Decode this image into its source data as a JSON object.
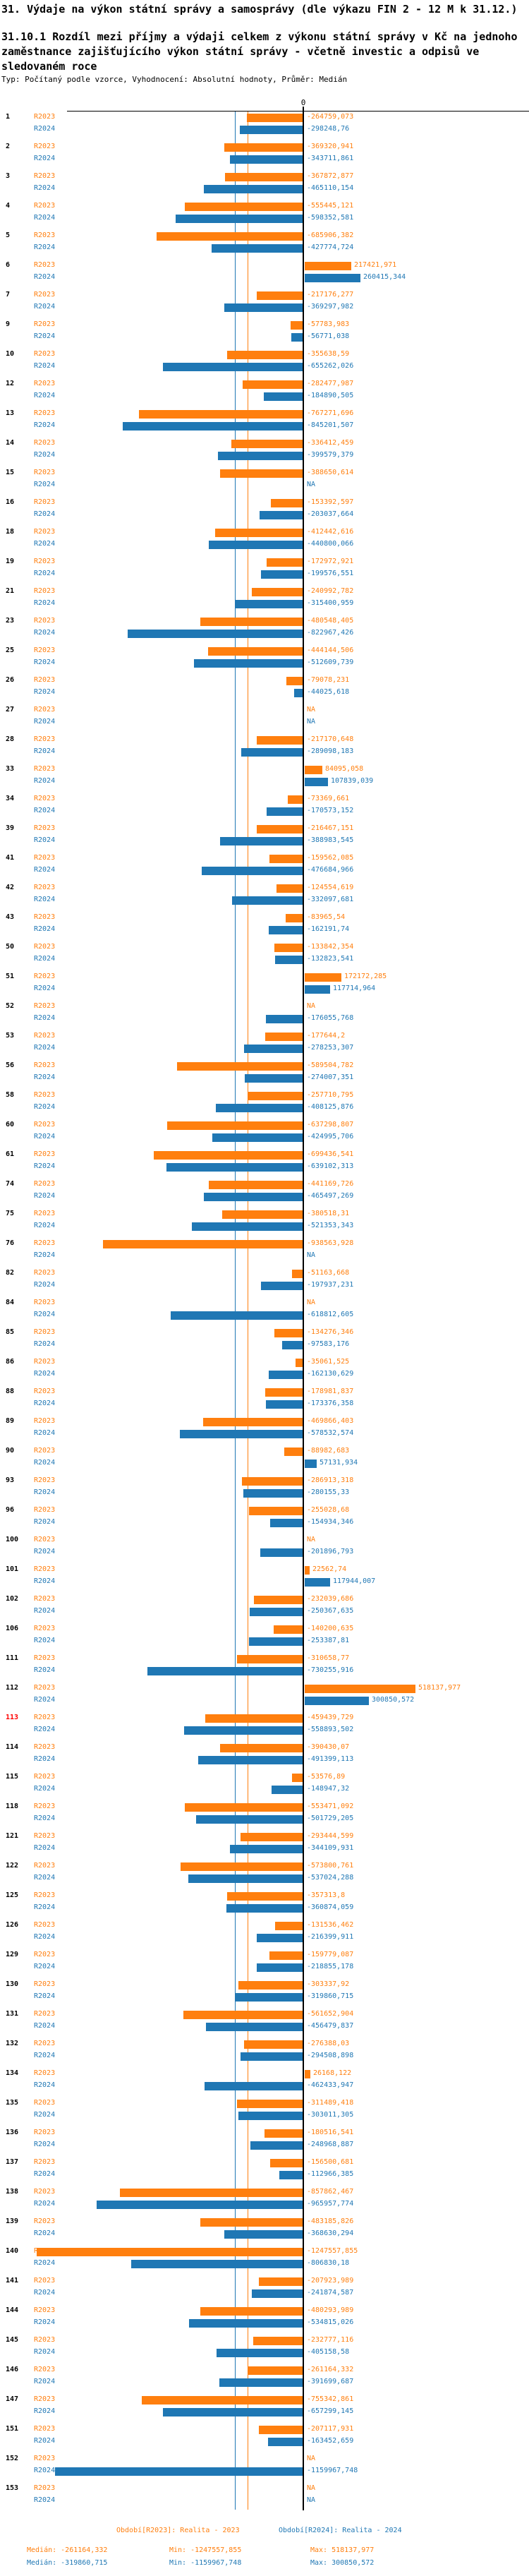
{
  "header": {
    "title": "31. Výdaje na výkon státní správy a samosprávy (dle výkazu FIN 2 - 12 M k 31.12.)",
    "subtitle": "31.10.1 Rozdíl mezi příjmy a výdaji celkem z výkonu státní správy v Kč na jednoho zaměstnance zajišťujícího výkon státní správy - včetně investic a odpisů ve sledovaném roce",
    "meta": "Typ: Počítaný podle vzorce, Vyhodnocení: Absolutní hodnoty, Průměr: Medián"
  },
  "chart_data": {
    "type": "bar",
    "orientation": "horizontal",
    "zero_tick_label": "0",
    "na_label": "NA",
    "highlighted_category": "113",
    "colors": {
      "r2023": "#ff7f0e",
      "r2024": "#1f77b4",
      "highlight": "#ff0000",
      "axis": "#000000"
    },
    "categories": [
      "1",
      "2",
      "3",
      "4",
      "5",
      "6",
      "7",
      "9",
      "10",
      "12",
      "13",
      "14",
      "15",
      "16",
      "18",
      "19",
      "21",
      "23",
      "25",
      "26",
      "27",
      "28",
      "33",
      "34",
      "39",
      "41",
      "42",
      "43",
      "50",
      "51",
      "52",
      "53",
      "56",
      "58",
      "60",
      "61",
      "74",
      "75",
      "76",
      "82",
      "84",
      "85",
      "86",
      "88",
      "89",
      "90",
      "93",
      "96",
      "100",
      "101",
      "102",
      "106",
      "111",
      "112",
      "113",
      "114",
      "115",
      "118",
      "121",
      "122",
      "125",
      "126",
      "129",
      "130",
      "131",
      "132",
      "134",
      "135",
      "136",
      "137",
      "138",
      "139",
      "140",
      "141",
      "144",
      "145",
      "146",
      "147",
      "151",
      "152",
      "153"
    ],
    "series": [
      {
        "name": "R2023",
        "color": "#ff7f0e",
        "values": [
          "-264759,073",
          "-369320,941",
          "-367872,877",
          "-555445,121",
          "-685906,382",
          "217421,971",
          "-217176,277",
          "-57783,983",
          "-355638,59",
          "-282477,987",
          "-767271,696",
          "-336412,459",
          "-388650,614",
          "-153392,597",
          "-412442,616",
          "-172972,921",
          "-240992,782",
          "-480548,405",
          "-444144,506",
          "-79078,231",
          "NA",
          "-217170,648",
          "84095,058",
          "-73369,661",
          "-216467,151",
          "-159562,085",
          "-124554,619",
          "-83965,54",
          "-133842,354",
          "172172,285",
          "NA",
          "-177644,2",
          "-589504,782",
          "-257710,795",
          "-637298,807",
          "-699436,541",
          "-441169,726",
          "-380518,31",
          "-938563,928",
          "-51163,668",
          "NA",
          "-134276,346",
          "-35061,525",
          "-178981,837",
          "-469866,403",
          "-88982,683",
          "-286913,318",
          "-255028,68",
          "NA",
          "22562,74",
          "-232039,686",
          "-140200,635",
          "-310658,77",
          "518137,977",
          "-459439,729",
          "-390430,07",
          "-53576,89",
          "-553471,092",
          "-293444,599",
          "-573800,761",
          "-357313,8",
          "-131536,462",
          "-159779,087",
          "-303337,92",
          "-561652,904",
          "-276388,03",
          "26168,122",
          "-311489,418",
          "-180516,541",
          "-156500,681",
          "-857862,467",
          "-483185,826",
          "-1247557,855",
          "-207923,989",
          "-480293,989",
          "-232777,116",
          "-261164,332",
          "-755342,861",
          "-207117,931",
          "NA",
          "NA"
        ]
      },
      {
        "name": "R2024",
        "color": "#1f77b4",
        "values": [
          "-298248,76",
          "-343711,861",
          "-465110,154",
          "-598352,581",
          "-427774,724",
          "260415,344",
          "-369297,982",
          "-56771,038",
          "-655262,026",
          "-184890,505",
          "-845201,507",
          "-399579,379",
          "NA",
          "-203037,664",
          "-440800,066",
          "-199576,551",
          "-315400,959",
          "-822967,426",
          "-512609,739",
          "-44025,618",
          "NA",
          "-289098,183",
          "107839,039",
          "-170573,152",
          "-388983,545",
          "-476684,966",
          "-332097,681",
          "-162191,74",
          "-132823,541",
          "117714,964",
          "-176055,768",
          "-278253,307",
          "-274007,351",
          "-408125,876",
          "-424995,706",
          "-639102,313",
          "-465497,269",
          "-521353,343",
          "NA",
          "-197937,231",
          "-618812,605",
          "-97583,176",
          "-162130,629",
          "-173376,358",
          "-578532,574",
          "57131,934",
          "-280155,33",
          "-154934,346",
          "-201896,793",
          "117944,007",
          "-250367,635",
          "-253387,81",
          "-730255,916",
          "300850,572",
          "-558893,502",
          "-491399,113",
          "-148947,32",
          "-501729,205",
          "-344109,931",
          "-537024,288",
          "-360874,059",
          "-216399,911",
          "-218855,178",
          "-319860,715",
          "-456479,837",
          "-294508,898",
          "-462433,947",
          "-303011,305",
          "-248968,887",
          "-112966,385",
          "-965957,774",
          "-368630,294",
          "-806830,18",
          "-241874,587",
          "-534815,026",
          "-405158,58",
          "-391699,687",
          "-657299,145",
          "-163452,659",
          "-1159967,748",
          "NA"
        ]
      }
    ],
    "medians": {
      "R2023": "-261164,332",
      "R2024": "-319860,715"
    }
  },
  "footer": {
    "legend": {
      "r2023": "Období[R2023]: Realita - 2023",
      "r2024": "Období[R2024]: Realita - 2024"
    },
    "stats_r2023": {
      "median": "Medián: -261164,332",
      "min": "Min: -1247557,855",
      "max": "Max: 518137,977"
    },
    "stats_r2024": {
      "median": "Medián: -319860,715",
      "min": "Min: -1159967,748",
      "max": "Max: 300850,572"
    }
  }
}
